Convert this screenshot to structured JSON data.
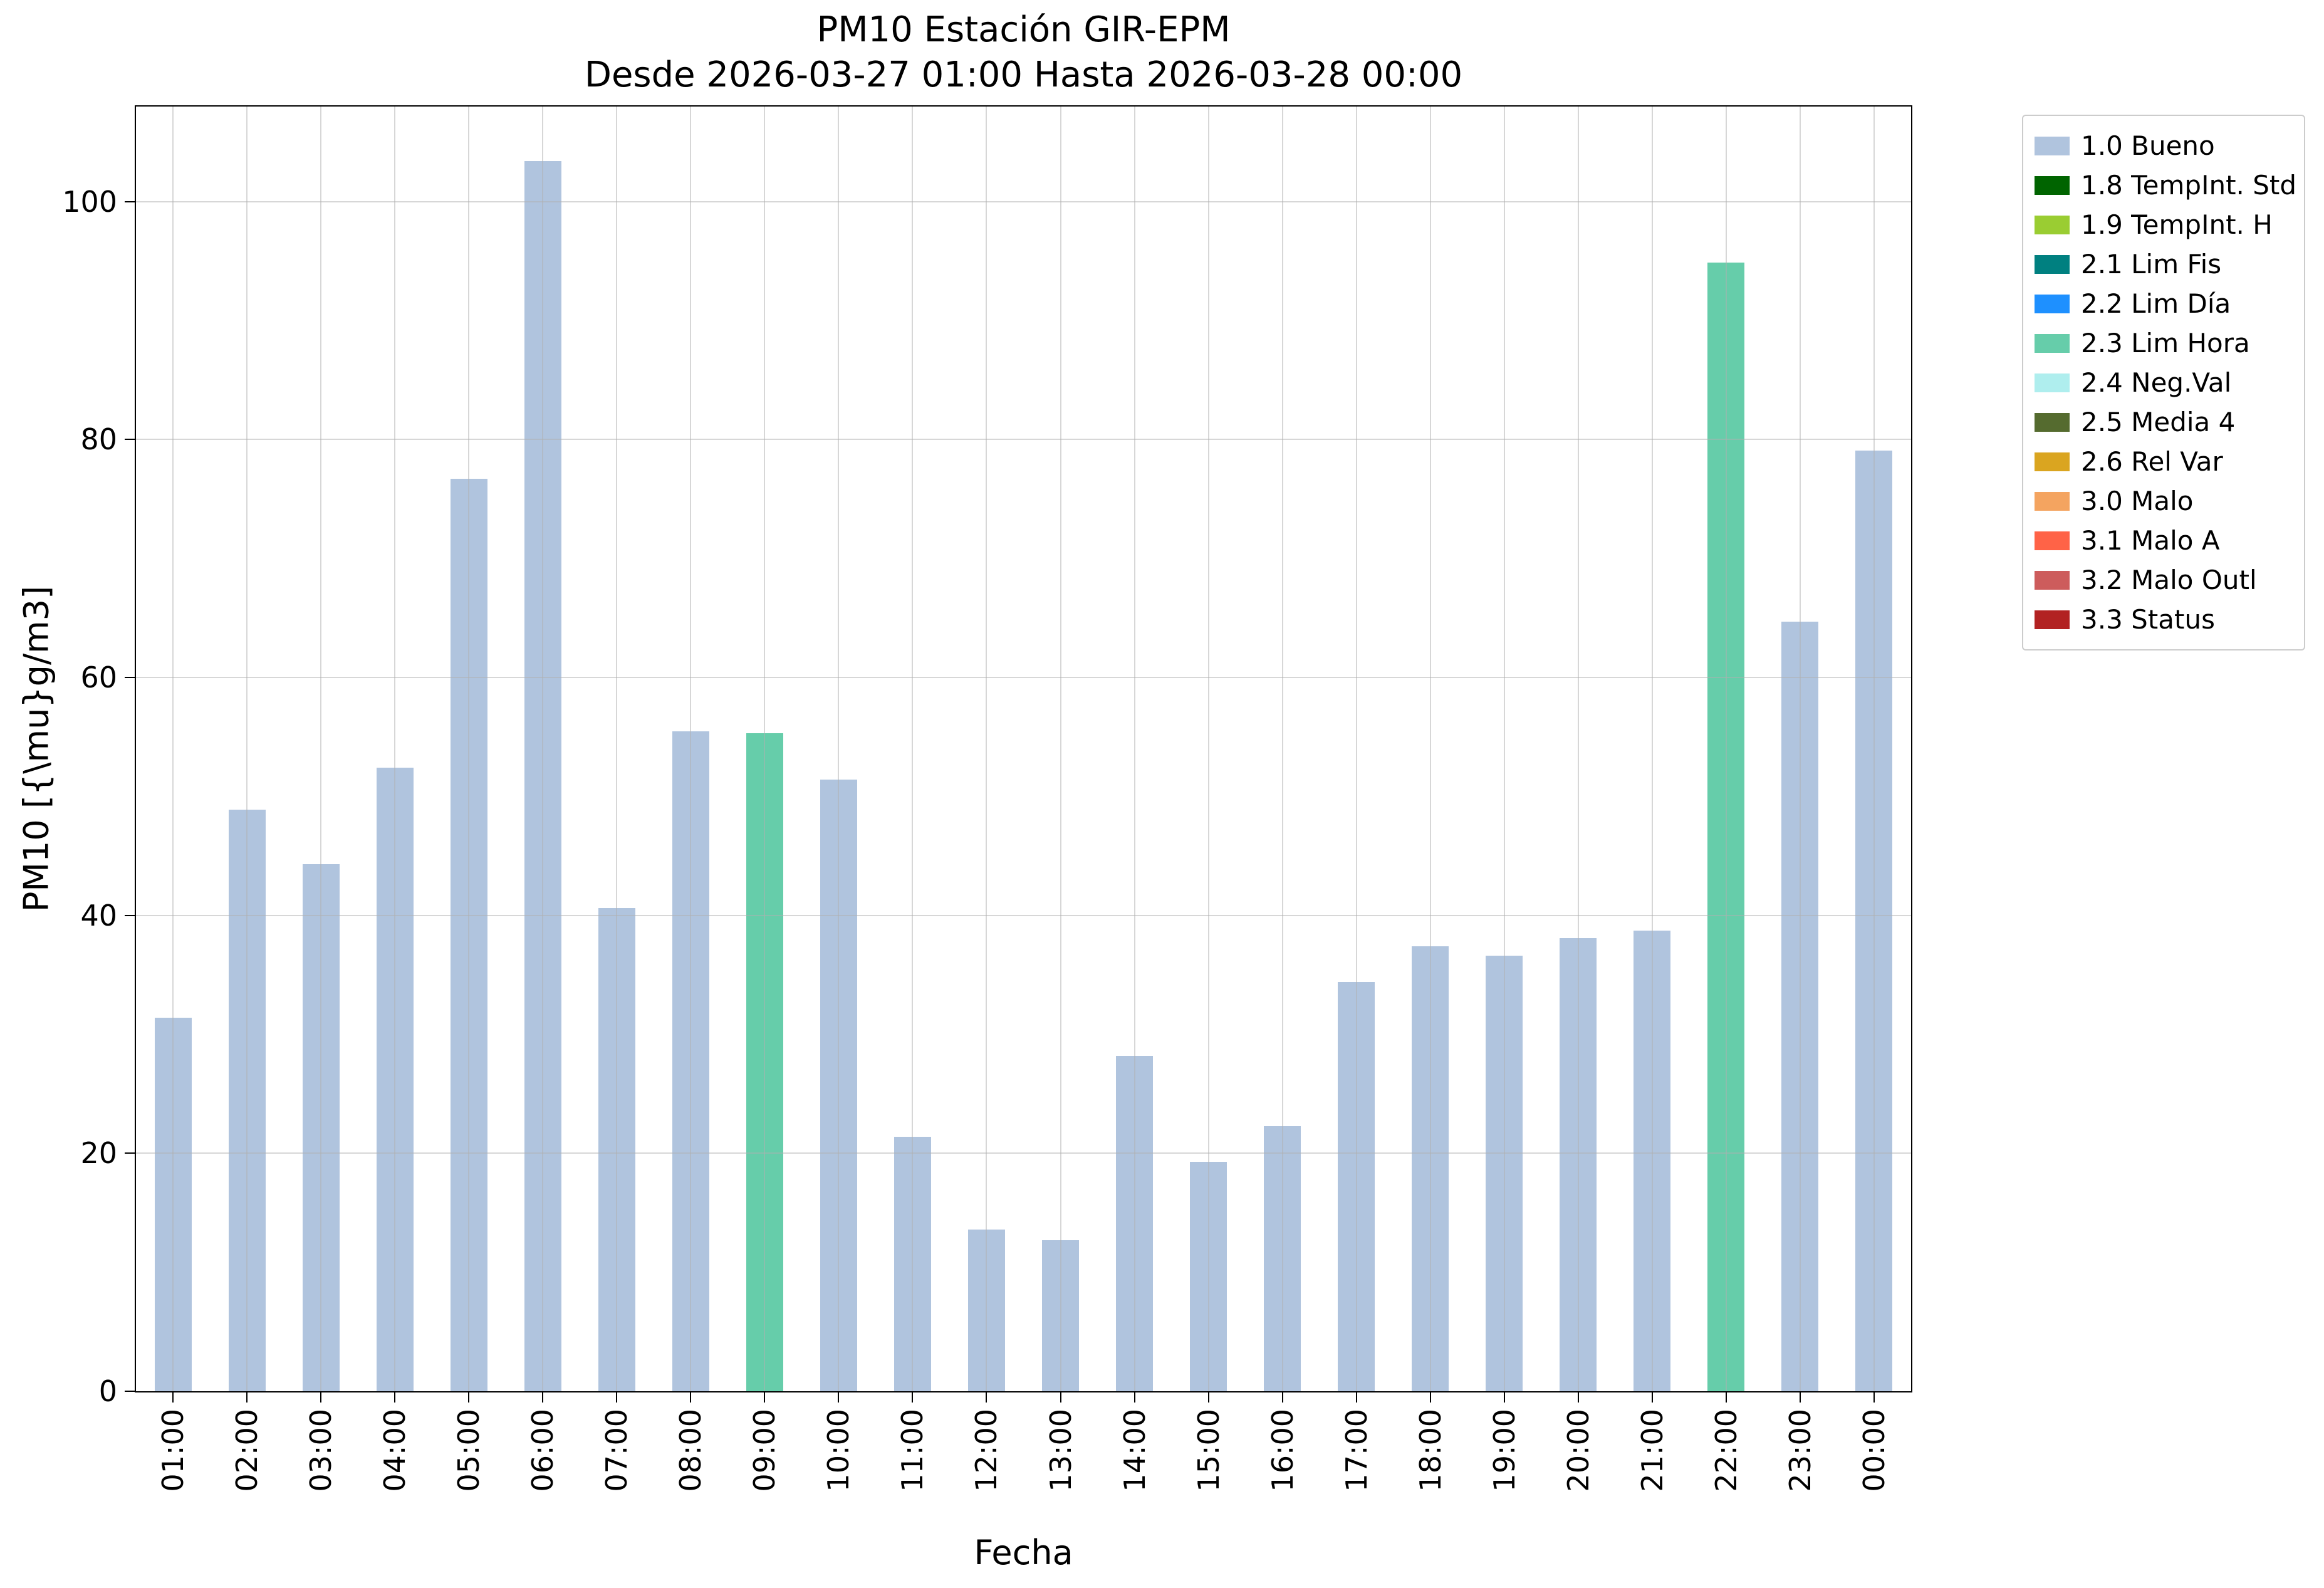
{
  "chart_data": {
    "type": "bar",
    "title": "PM10 Estación GIR-EPM",
    "subtitle": "Desde 2026-03-27 01:00 Hasta 2026-03-28 00:00",
    "xlabel": "Fecha",
    "ylabel": "PM10 [{\\mu}g/m3]",
    "ylim": [
      0,
      108
    ],
    "yticks": [
      0,
      20,
      40,
      60,
      80,
      100
    ],
    "grid": true,
    "legend_position": "outside-upper-right",
    "categories": [
      "01:00",
      "02:00",
      "03:00",
      "04:00",
      "05:00",
      "06:00",
      "07:00",
      "08:00",
      "09:00",
      "10:00",
      "11:00",
      "12:00",
      "13:00",
      "14:00",
      "15:00",
      "16:00",
      "17:00",
      "18:00",
      "19:00",
      "20:00",
      "21:00",
      "22:00",
      "23:00",
      "00:00"
    ],
    "values": [
      31.4,
      48.9,
      44.3,
      52.4,
      76.7,
      103.4,
      40.6,
      55.5,
      55.3,
      51.4,
      21.4,
      13.6,
      12.7,
      28.2,
      19.3,
      22.3,
      34.4,
      37.4,
      36.6,
      38.1,
      38.7,
      94.9,
      64.7,
      79.1
    ],
    "statuses": [
      "1.0 Bueno",
      "1.0 Bueno",
      "1.0 Bueno",
      "1.0 Bueno",
      "1.0 Bueno",
      "1.0 Bueno",
      "1.0 Bueno",
      "1.0 Bueno",
      "2.3 Lim Hora",
      "1.0 Bueno",
      "1.0 Bueno",
      "1.0 Bueno",
      "1.0 Bueno",
      "1.0 Bueno",
      "1.0 Bueno",
      "1.0 Bueno",
      "1.0 Bueno",
      "1.0 Bueno",
      "1.0 Bueno",
      "1.0 Bueno",
      "1.0 Bueno",
      "2.3 Lim Hora",
      "1.0 Bueno",
      "1.0 Bueno"
    ],
    "legend": [
      {
        "label": "1.0 Bueno",
        "color": "#b0c4de"
      },
      {
        "label": "1.8 TempInt. Std",
        "color": "#006400"
      },
      {
        "label": "1.9 TempInt. H",
        "color": "#9acd32"
      },
      {
        "label": "2.1 Lim Fis",
        "color": "#008080"
      },
      {
        "label": "2.2 Lim Día",
        "color": "#1e90ff"
      },
      {
        "label": "2.3 Lim Hora",
        "color": "#66cdaa"
      },
      {
        "label": "2.4 Neg.Val",
        "color": "#afeeee"
      },
      {
        "label": "2.5 Media 4",
        "color": "#556b2f"
      },
      {
        "label": "2.6 Rel Var",
        "color": "#daa520"
      },
      {
        "label": "3.0 Malo",
        "color": "#f4a460"
      },
      {
        "label": "3.1 Malo A",
        "color": "#ff6347"
      },
      {
        "label": "3.2 Malo Outl",
        "color": "#cd5c5c"
      },
      {
        "label": "3.3 Status",
        "color": "#b22222"
      }
    ],
    "colors": {
      "grid": "#b0b0b0",
      "axis": "#000000",
      "legend_border": "#cccccc",
      "background": "#ffffff"
    }
  }
}
